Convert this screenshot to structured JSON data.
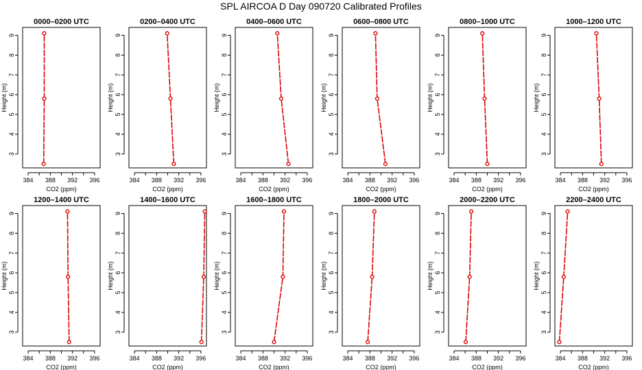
{
  "title": "SPL AIRCOA D  Day 090720  Calibrated Profiles",
  "colors": {
    "series": "#dd0000",
    "axis": "#000000",
    "background": "#ffffff"
  },
  "chart_data": [
    {
      "type": "line",
      "title": "0000–0200 UTC",
      "xlabel": "CO2 (ppm)",
      "ylabel": "Height (m)",
      "xlim": [
        383,
        397
      ],
      "ylim": [
        2.3,
        9.4
      ],
      "xticks": [
        384,
        388,
        392,
        396
      ],
      "yticks": [
        3,
        4,
        5,
        6,
        7,
        8,
        9
      ],
      "x": [
        386.8,
        386.9,
        386.9
      ],
      "y": [
        2.5,
        5.8,
        9.1
      ],
      "grid": false
    },
    {
      "type": "line",
      "title": "0200–0400 UTC",
      "xlabel": "CO2 (ppm)",
      "ylabel": "Height (m)",
      "xlim": [
        383,
        397
      ],
      "ylim": [
        2.3,
        9.4
      ],
      "xticks": [
        384,
        388,
        392,
        396
      ],
      "yticks": [
        3,
        4,
        5,
        6,
        7,
        8,
        9
      ],
      "x": [
        391.1,
        390.5,
        389.9
      ],
      "y": [
        2.5,
        5.8,
        9.1
      ],
      "grid": false
    },
    {
      "type": "line",
      "title": "0400–0600 UTC",
      "xlabel": "CO2 (ppm)",
      "ylabel": "Height (m)",
      "xlim": [
        383,
        397
      ],
      "ylim": [
        2.3,
        9.4
      ],
      "xticks": [
        384,
        388,
        392,
        396
      ],
      "yticks": [
        3,
        4,
        5,
        6,
        7,
        8,
        9
      ],
      "x": [
        392.6,
        391.3,
        390.6
      ],
      "y": [
        2.5,
        5.8,
        9.1
      ],
      "grid": false
    },
    {
      "type": "line",
      "title": "0600–0800 UTC",
      "xlabel": "CO2 (ppm)",
      "ylabel": "Height (m)",
      "xlim": [
        383,
        397
      ],
      "ylim": [
        2.3,
        9.4
      ],
      "xticks": [
        384,
        388,
        392,
        396
      ],
      "yticks": [
        3,
        4,
        5,
        6,
        7,
        8,
        9
      ],
      "x": [
        390.8,
        389.3,
        389.0
      ],
      "y": [
        2.5,
        5.8,
        9.1
      ],
      "grid": false
    },
    {
      "type": "line",
      "title": "0800–1000 UTC",
      "xlabel": "CO2 (ppm)",
      "ylabel": "Height (m)",
      "xlim": [
        383,
        397
      ],
      "ylim": [
        2.3,
        9.4
      ],
      "xticks": [
        384,
        388,
        392,
        396
      ],
      "yticks": [
        3,
        4,
        5,
        6,
        7,
        8,
        9
      ],
      "x": [
        390.0,
        389.5,
        389.1
      ],
      "y": [
        2.5,
        5.8,
        9.1
      ],
      "grid": false
    },
    {
      "type": "line",
      "title": "1000–1200 UTC",
      "xlabel": "CO2 (ppm)",
      "ylabel": "Height (m)",
      "xlim": [
        383,
        397
      ],
      "ylim": [
        2.3,
        9.4
      ],
      "xticks": [
        384,
        388,
        392,
        396
      ],
      "yticks": [
        3,
        4,
        5,
        6,
        7,
        8,
        9
      ],
      "x": [
        391.4,
        391.0,
        390.5
      ],
      "y": [
        2.5,
        5.8,
        9.1
      ],
      "grid": false
    },
    {
      "type": "line",
      "title": "1200–1400 UTC",
      "xlabel": "CO2 (ppm)",
      "ylabel": "Height (m)",
      "xlim": [
        383,
        397
      ],
      "ylim": [
        2.3,
        9.4
      ],
      "xticks": [
        384,
        388,
        392,
        396
      ],
      "yticks": [
        3,
        4,
        5,
        6,
        7,
        8,
        9
      ],
      "x": [
        391.4,
        391.2,
        391.1
      ],
      "y": [
        2.5,
        5.8,
        9.1
      ],
      "grid": false
    },
    {
      "type": "line",
      "title": "1400–1600 UTC",
      "xlabel": "CO2 (ppm)",
      "ylabel": "Height (m)",
      "xlim": [
        383,
        397
      ],
      "ylim": [
        2.3,
        9.4
      ],
      "xticks": [
        384,
        388,
        392,
        396
      ],
      "yticks": [
        3,
        4,
        5,
        6,
        7,
        8,
        9
      ],
      "x": [
        396.1,
        396.5,
        396.7
      ],
      "y": [
        2.5,
        5.8,
        9.1
      ],
      "grid": false
    },
    {
      "type": "line",
      "title": "1600–1800 UTC",
      "xlabel": "CO2 (ppm)",
      "ylabel": "Height (m)",
      "xlim": [
        383,
        397
      ],
      "ylim": [
        2.3,
        9.4
      ],
      "xticks": [
        384,
        388,
        392,
        396
      ],
      "yticks": [
        3,
        4,
        5,
        6,
        7,
        8,
        9
      ],
      "x": [
        390.0,
        391.6,
        391.8
      ],
      "y": [
        2.5,
        5.8,
        9.1
      ],
      "grid": false
    },
    {
      "type": "line",
      "title": "1800–2000 UTC",
      "xlabel": "CO2 (ppm)",
      "ylabel": "Height (m)",
      "xlim": [
        383,
        397
      ],
      "ylim": [
        2.3,
        9.4
      ],
      "xticks": [
        384,
        388,
        392,
        396
      ],
      "yticks": [
        3,
        4,
        5,
        6,
        7,
        8,
        9
      ],
      "x": [
        387.6,
        388.4,
        388.8
      ],
      "y": [
        2.5,
        5.8,
        9.1
      ],
      "grid": false
    },
    {
      "type": "line",
      "title": "2000–2200 UTC",
      "xlabel": "CO2 (ppm)",
      "ylabel": "Height (m)",
      "xlim": [
        383,
        397
      ],
      "ylim": [
        2.3,
        9.4
      ],
      "xticks": [
        384,
        388,
        392,
        396
      ],
      "yticks": [
        3,
        4,
        5,
        6,
        7,
        8,
        9
      ],
      "x": [
        386.1,
        386.8,
        387.1
      ],
      "y": [
        2.5,
        5.8,
        9.1
      ],
      "grid": false
    },
    {
      "type": "line",
      "title": "2200–2400 UTC",
      "xlabel": "CO2 (ppm)",
      "ylabel": "Height (m)",
      "xlim": [
        383,
        397
      ],
      "ylim": [
        2.3,
        9.4
      ],
      "xticks": [
        384,
        388,
        392,
        396
      ],
      "yticks": [
        3,
        4,
        5,
        6,
        7,
        8,
        9
      ],
      "x": [
        383.8,
        384.6,
        385.3
      ],
      "y": [
        2.5,
        5.8,
        9.1
      ],
      "grid": false
    }
  ]
}
